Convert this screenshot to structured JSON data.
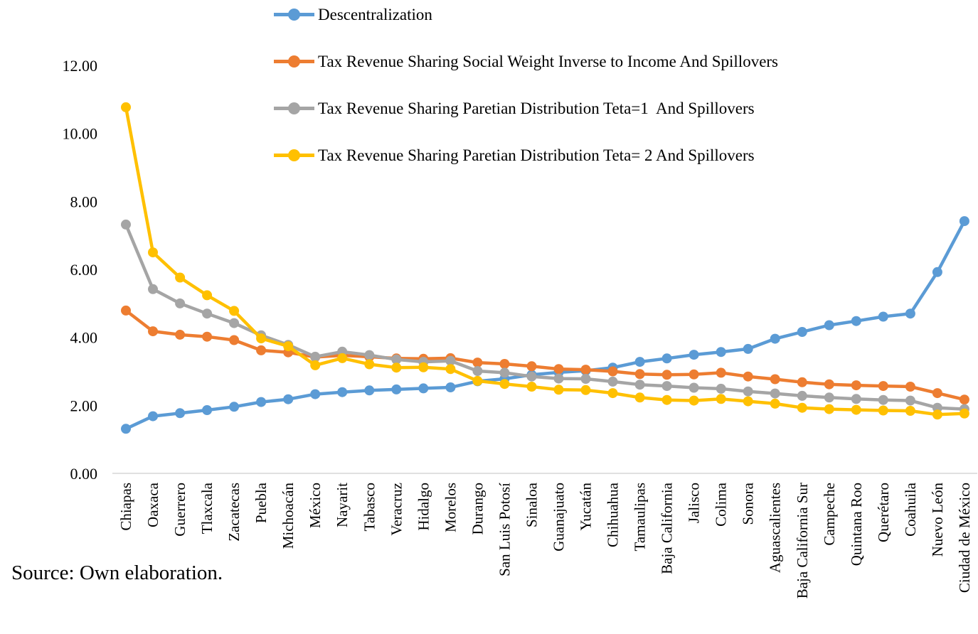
{
  "chart_data": {
    "type": "line",
    "title": "",
    "xlabel": "",
    "ylabel": "",
    "ylim": [
      0,
      12
    ],
    "y_ticks": [
      "0.00",
      "2.00",
      "4.00",
      "6.00",
      "8.00",
      "10.00",
      "12.00"
    ],
    "grid": false,
    "legend_position": "top-center",
    "marker": "circle",
    "categories": [
      "Chiapas",
      "Oaxaca",
      "Guerrero",
      "Tlaxcala",
      "Zacatecas",
      "Puebla",
      "Michoacán",
      "México",
      "Nayarit",
      "Tabasco",
      "Veracruz",
      "Hidalgo",
      "Morelos",
      "Durango",
      "San Luis Potosí",
      "Sinaloa",
      "Guanajuato",
      "Yucatán",
      "Chihuahua",
      "Tamaulipas",
      "Baja California",
      "Jalisco",
      "Colima",
      "Sonora",
      "Aguascalientes",
      "Baja California Sur",
      "Campeche",
      "Quintana Roo",
      "Querétaro",
      "Coahuila",
      "Nuevo León",
      "Ciudad de México"
    ],
    "series": [
      {
        "name": "Descentralization",
        "color": "#5B9BD5",
        "values": [
          1.31,
          1.68,
          1.77,
          1.86,
          1.96,
          2.1,
          2.18,
          2.33,
          2.39,
          2.44,
          2.47,
          2.5,
          2.53,
          2.71,
          2.78,
          2.9,
          2.97,
          3.02,
          3.11,
          3.28,
          3.38,
          3.49,
          3.57,
          3.66,
          3.96,
          4.16,
          4.36,
          4.48,
          4.61,
          4.7,
          5.92,
          7.42
        ]
      },
      {
        "name": "Tax Revenue Sharing Social Weight Inverse to Income And Spillovers",
        "color": "#ED7D31",
        "values": [
          4.79,
          4.18,
          4.08,
          4.02,
          3.92,
          3.62,
          3.56,
          3.42,
          3.47,
          3.43,
          3.38,
          3.37,
          3.39,
          3.26,
          3.22,
          3.15,
          3.07,
          3.05,
          3.0,
          2.92,
          2.9,
          2.91,
          2.96,
          2.85,
          2.77,
          2.68,
          2.62,
          2.59,
          2.57,
          2.55,
          2.36,
          2.17
        ]
      },
      {
        "name": "Tax Revenue Sharing Paretian Distribution Teta=1  And Spillovers",
        "color": "#A5A5A5",
        "values": [
          7.32,
          5.42,
          5.0,
          4.7,
          4.42,
          4.06,
          3.78,
          3.43,
          3.58,
          3.48,
          3.35,
          3.28,
          3.31,
          3.01,
          2.96,
          2.85,
          2.79,
          2.78,
          2.7,
          2.61,
          2.57,
          2.52,
          2.49,
          2.41,
          2.35,
          2.28,
          2.23,
          2.19,
          2.16,
          2.14,
          1.93,
          1.89
        ]
      },
      {
        "name": "Tax Revenue Sharing Paretian Distribution Teta= 2 And Spillovers",
        "color": "#FFC000",
        "values": [
          10.77,
          6.5,
          5.76,
          5.24,
          4.78,
          3.97,
          3.74,
          3.18,
          3.39,
          3.21,
          3.11,
          3.12,
          3.07,
          2.72,
          2.63,
          2.55,
          2.46,
          2.45,
          2.36,
          2.23,
          2.16,
          2.14,
          2.19,
          2.12,
          2.05,
          1.93,
          1.89,
          1.87,
          1.85,
          1.84,
          1.73,
          1.76
        ]
      }
    ]
  },
  "source_note": "Source: Own elaboration.",
  "colors": {
    "axis_line": "#d6d6d6",
    "text": "#000000",
    "background": "#ffffff"
  }
}
